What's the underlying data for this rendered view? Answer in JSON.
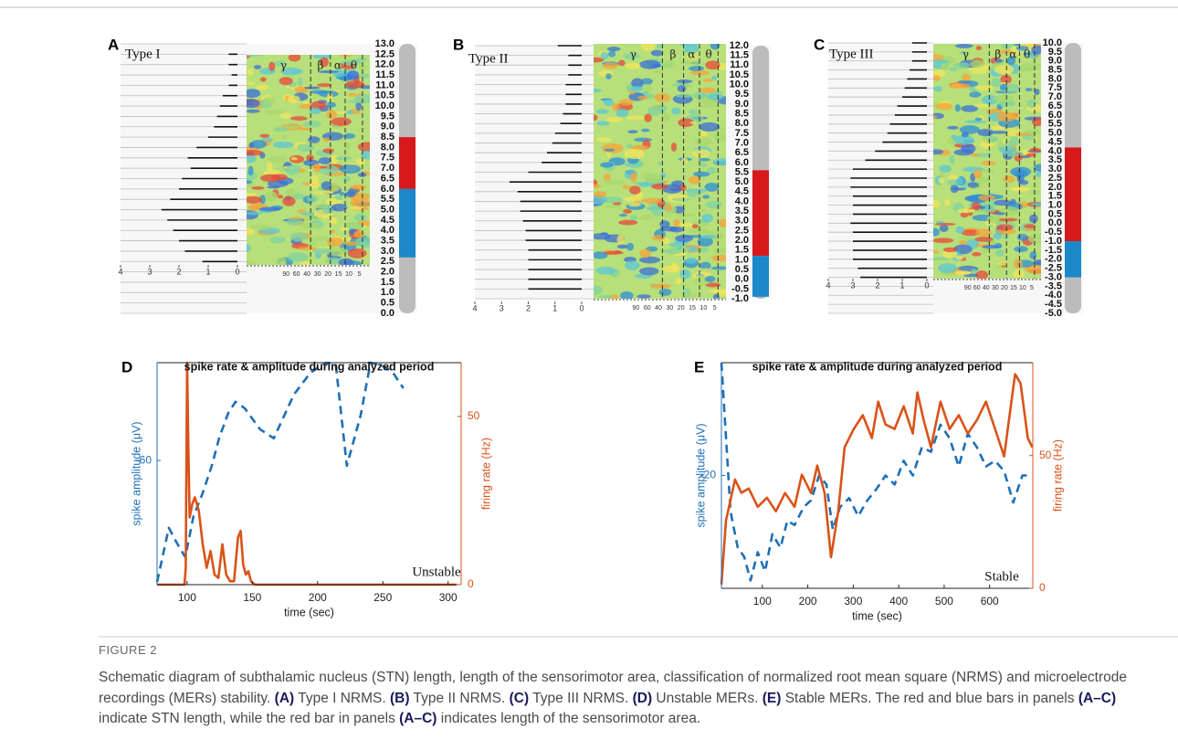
{
  "panels": [
    {
      "letter": "A",
      "type_label": "Type I",
      "ylim": [
        0,
        13
      ],
      "depth_ticks": [
        {
          "value": 13,
          "label": "13.0"
        },
        12.5,
        {
          "value": 12,
          "label": "12.0"
        },
        11.5,
        {
          "value": 11,
          "label": "11.0"
        },
        10.5,
        {
          "value": 10,
          "label": "10.0"
        },
        9.5,
        {
          "value": 9,
          "label": "9.0"
        },
        8.5,
        {
          "value": 8,
          "label": "8.0"
        },
        7.5,
        {
          "value": 7,
          "label": "7.0"
        },
        6.5,
        {
          "value": 6,
          "label": "6.0"
        },
        5.5,
        {
          "value": 5,
          "label": "5.0"
        },
        4.5,
        {
          "value": 4,
          "label": "4.0"
        },
        3.5,
        {
          "value": 3,
          "label": "3.0"
        },
        2.5,
        {
          "value": 2,
          "label": "2.0"
        },
        1.5,
        {
          "value": 1,
          "label": "1.0"
        },
        0.5,
        {
          "value": 0,
          "label": "0.0"
        }
      ],
      "xlim": [
        4,
        0
      ],
      "xticks": [
        4,
        3,
        2,
        1,
        0
      ],
      "freq_ticks": [
        90,
        60,
        40,
        30,
        20,
        15,
        10,
        5
      ],
      "band_labels": [
        "γ",
        "β",
        "α",
        "θ"
      ],
      "depths": [
        12.5,
        12,
        11.5,
        11,
        10.5,
        10,
        9.5,
        9,
        8.5,
        8,
        7.5,
        7,
        6.5,
        6,
        5.5,
        5,
        4.5,
        4,
        3.5,
        3,
        2.5
      ],
      "nrms": [
        0.3,
        0.3,
        0.2,
        0.3,
        0.5,
        0.6,
        0.7,
        0.8,
        1.0,
        1.4,
        1.7,
        1.6,
        1.9,
        2.0,
        2.3,
        2.6,
        2.4,
        2.2,
        2.0,
        1.8,
        1.2
      ],
      "red_range": [
        6.0,
        8.5
      ],
      "blue_range": [
        2.7,
        6.0
      ]
    },
    {
      "letter": "B",
      "type_label": "Type II",
      "ylim": [
        -1,
        12
      ],
      "depth_ticks": [
        {
          "value": 12,
          "label": "12.0"
        },
        11.5,
        {
          "value": 11,
          "label": "11.0"
        },
        10.5,
        {
          "value": 10,
          "label": "10.0"
        },
        9.5,
        {
          "value": 9,
          "label": "9.0"
        },
        8.5,
        {
          "value": 8,
          "label": "8.0"
        },
        7.5,
        {
          "value": 7,
          "label": "7.0"
        },
        6.5,
        {
          "value": 6,
          "label": "6.0"
        },
        5.5,
        {
          "value": 5,
          "label": "5.0"
        },
        4.5,
        {
          "value": 4,
          "label": "4.0"
        },
        3.5,
        {
          "value": 3,
          "label": "3.0"
        },
        2.5,
        {
          "value": 2,
          "label": "2.0"
        },
        1.5,
        {
          "value": 1,
          "label": "1.0"
        },
        0.5,
        {
          "value": 0,
          "label": "0.0"
        },
        -0.5,
        {
          "value": -1,
          "label": "-1.0"
        }
      ],
      "xlim": [
        4,
        0
      ],
      "xticks": [
        4,
        3,
        2,
        1,
        0
      ],
      "freq_ticks": [
        90,
        60,
        40,
        30,
        20,
        15,
        10,
        5
      ],
      "band_labels": [
        "γ",
        "β",
        "α",
        "θ"
      ],
      "depths": [
        12,
        11.5,
        11,
        10.5,
        10,
        9.5,
        9,
        8.5,
        8,
        7.5,
        7,
        6.5,
        6,
        5.5,
        5,
        4.5,
        4,
        3.5,
        3,
        2.5,
        2,
        1.5,
        1,
        0.5,
        0,
        -0.5
      ],
      "nrms": [
        0.9,
        0.5,
        0.5,
        0.5,
        0.6,
        0.6,
        0.6,
        0.7,
        0.8,
        1.0,
        1.1,
        1.3,
        1.5,
        2.0,
        2.7,
        2.4,
        2.3,
        2.3,
        2.2,
        2.1,
        2.1,
        2.0,
        2.0,
        2.0,
        2.0,
        2.0
      ],
      "red_range": [
        1.2,
        5.6
      ],
      "blue_range": [
        -0.9,
        1.2
      ]
    },
    {
      "letter": "C",
      "type_label": "Type III",
      "ylim": [
        -5,
        10
      ],
      "depth_ticks": [
        {
          "value": 10,
          "label": "10.0"
        },
        9.5,
        {
          "value": 9,
          "label": "9.0"
        },
        8.5,
        {
          "value": 8,
          "label": "8.0"
        },
        7.5,
        {
          "value": 7,
          "label": "7.0"
        },
        6.5,
        {
          "value": 6,
          "label": "6.0"
        },
        5.5,
        {
          "value": 5,
          "label": "5.0"
        },
        4.5,
        {
          "value": 4,
          "label": "4.0"
        },
        3.5,
        {
          "value": 3,
          "label": "3.0"
        },
        2.5,
        {
          "value": 2,
          "label": "2.0"
        },
        1.5,
        {
          "value": 1,
          "label": "1.0"
        },
        0.5,
        {
          "value": 0,
          "label": "0.0"
        },
        -0.5,
        {
          "value": -1,
          "label": "-1.0"
        },
        -1.5,
        {
          "value": -2,
          "label": "-2.0"
        },
        -2.5,
        {
          "value": -3,
          "label": "-3.0"
        },
        -3.5,
        {
          "value": -4,
          "label": "-4.0"
        },
        -4.5,
        {
          "value": -5,
          "label": "-5.0"
        }
      ],
      "xlim": [
        4,
        0
      ],
      "xticks": [
        4,
        3,
        2,
        1,
        0
      ],
      "freq_ticks": [
        90,
        60,
        40,
        30,
        20,
        15,
        10,
        5
      ],
      "band_labels": [
        "γ",
        "β",
        "α",
        "θ"
      ],
      "depths": [
        10,
        9.5,
        9,
        8.5,
        8,
        7.5,
        7,
        6.5,
        6,
        5.5,
        5,
        4.5,
        4,
        3.5,
        3,
        2.5,
        2,
        1.5,
        1,
        0.5,
        0,
        -0.5,
        -1,
        -1.5,
        -2,
        -2.5,
        -3
      ],
      "nrms": [
        0.6,
        0.6,
        0.6,
        0.7,
        0.8,
        0.9,
        1.0,
        1.2,
        1.3,
        1.5,
        1.6,
        1.8,
        2.1,
        2.5,
        3.0,
        3.1,
        3.1,
        3.0,
        3.0,
        3.0,
        3.1,
        3.0,
        3.0,
        3.0,
        3.0,
        2.8,
        2.7
      ],
      "red_range": [
        -1.0,
        4.2
      ],
      "blue_range": [
        -3.0,
        -1.0
      ]
    }
  ],
  "chart_data": [
    {
      "type": "line",
      "letter": "D",
      "title": "spike rate & amplitude during analyzed period",
      "xlabel": "time (sec)",
      "ylabel": "spike amplitude (μV)",
      "y2label": "firing rate (Hz)",
      "annotation": "Unstable",
      "xlim": [
        77,
        310
      ],
      "xticks": [
        100,
        150,
        200,
        250,
        300
      ],
      "ylim": [
        -93,
        -34
      ],
      "yticks": [
        -60
      ],
      "y2lim": [
        0,
        66
      ],
      "y2ticks": [
        0,
        50
      ],
      "series": [
        {
          "color": "#1f6fb5",
          "dash": true,
          "x": [
            77,
            86,
            91.6,
            98.6,
            104.9,
            111.9,
            118.9,
            124.5,
            131.5,
            137.1,
            144.1,
            155.9,
            166.4,
            181.8,
            194.4,
            206.3,
            214,
            222.4,
            232.9,
            240.6,
            249,
            257.3,
            265.7
          ],
          "values": [
            -92.3,
            -77.9,
            -81.6,
            -85.7,
            -74.8,
            -68.7,
            -61.4,
            -54.1,
            -47.4,
            -44.4,
            -46.1,
            -51.7,
            -54.1,
            -42.5,
            -36.7,
            -34.0,
            -34.7,
            -61.4,
            -48.1,
            -34.0,
            -34.7,
            -36.4,
            -40.8
          ]
        },
        {
          "color": "#d95319",
          "axis": "y2",
          "x": [
            77,
            98,
            99,
            100,
            101,
            102,
            104,
            106,
            109,
            112,
            115,
            118,
            121,
            124,
            127,
            130,
            133,
            136,
            139,
            141,
            143,
            145,
            147,
            149,
            152,
            306
          ],
          "values": [
            0,
            0,
            5,
            66,
            40,
            20,
            24,
            26,
            22,
            12,
            5,
            10,
            3,
            2,
            12,
            3,
            1,
            1,
            14,
            16,
            6,
            3,
            4,
            1,
            0,
            0
          ]
        }
      ]
    },
    {
      "type": "line",
      "letter": "E",
      "title": "spike rate & amplitude during analyzed period",
      "xlabel": "time (sec)",
      "ylabel": "spike amplitude (μV)",
      "y2label": "firing rate (Hz)",
      "annotation": "Stable",
      "xlim": [
        10,
        695
      ],
      "xticks": [
        100,
        200,
        300,
        400,
        500,
        600
      ],
      "ylim": [
        -30,
        -10
      ],
      "yticks": [
        -20
      ],
      "y2lim": [
        0,
        85
      ],
      "y2ticks": [
        0,
        50
      ],
      "series": [
        {
          "color": "#1f6fb5",
          "dash": true,
          "x": [
            10,
            30,
            46,
            60,
            74,
            90,
            106,
            122,
            140,
            155,
            171,
            191,
            207,
            225,
            241,
            255,
            271,
            291,
            311,
            331,
            351,
            371,
            391,
            411,
            431,
            451,
            471,
            492,
            512,
            532,
            552,
            572,
            592,
            612,
            632,
            652,
            672,
            690
          ],
          "values": [
            -10,
            -23.2,
            -26.4,
            -27.2,
            -29.3,
            -26.8,
            -28.5,
            -25.2,
            -26.4,
            -24,
            -24.4,
            -22.8,
            -22.2,
            -20,
            -20.8,
            -24.8,
            -22.8,
            -22,
            -23.6,
            -22.2,
            -21.2,
            -20,
            -20.8,
            -18.7,
            -20,
            -17.5,
            -17.9,
            -15.5,
            -16.7,
            -19.2,
            -16.3,
            -17.5,
            -19.2,
            -18.7,
            -19.6,
            -22.4,
            -20,
            -20
          ]
        },
        {
          "color": "#d95319",
          "axis": "y2",
          "x": [
            10,
            20,
            40,
            54,
            70,
            90,
            110,
            130,
            150,
            171,
            187,
            207,
            221,
            237,
            251,
            267,
            281,
            301,
            321,
            341,
            355,
            371,
            391,
            411,
            431,
            441,
            455,
            471,
            492,
            512,
            532,
            552,
            572,
            592,
            612,
            632,
            656,
            668,
            684,
            694
          ],
          "values": [
            1.4,
            25.5,
            41,
            36,
            37.6,
            30.7,
            34.1,
            29,
            35.9,
            30.7,
            42.8,
            35.9,
            46.2,
            35.9,
            11.7,
            29,
            53.1,
            60,
            65.2,
            56.6,
            70.3,
            61.7,
            60,
            68.6,
            58.3,
            73.8,
            63.4,
            53.1,
            70.3,
            60,
            65.2,
            58.3,
            63.4,
            70.3,
            60,
            49.7,
            80.7,
            77.2,
            56.6,
            53.1
          ]
        }
      ]
    }
  ],
  "caption": {
    "label": "FIGURE 2",
    "runs": [
      {
        "text": "Schematic diagram of subthalamic nucleus (STN) length, length of the sensorimotor area, classification of normalized root mean square (NRMS) and microelectrode recordings (MERs) stability. "
      },
      {
        "text": "(A)",
        "bold": true
      },
      {
        "text": " Type I NRMS. "
      },
      {
        "text": "(B)",
        "bold": true
      },
      {
        "text": " Type II NRMS. "
      },
      {
        "text": "(C)",
        "bold": true
      },
      {
        "text": " Type III NRMS. "
      },
      {
        "text": "(D)",
        "bold": true
      },
      {
        "text": " Unstable MERs. "
      },
      {
        "text": "(E)",
        "bold": true
      },
      {
        "text": " Stable MERs. The red and blue bars in panels "
      },
      {
        "text": "(A–C)",
        "bold": true
      },
      {
        "text": " indicate STN length, while the red bar in panels "
      },
      {
        "text": "(A–C)",
        "bold": true
      },
      {
        "text": " indicates length of the sensorimotor area."
      }
    ]
  }
}
